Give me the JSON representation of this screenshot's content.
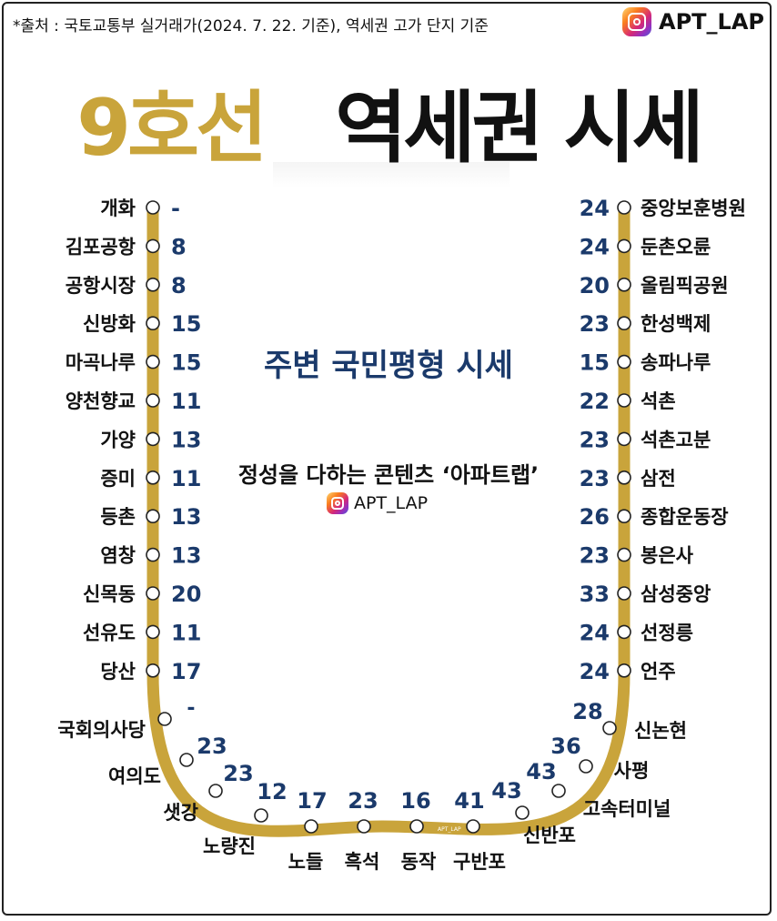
{
  "source_note": "*출처 : 국토교통부 실거래가(2024. 7. 22. 기준), 역세권 고가 단지 기준",
  "brand": "APT_LAP",
  "title_line": {
    "line_no": "9호선",
    "rest": "역세권 시세"
  },
  "center": {
    "title": "주변 국민평형 시세",
    "subtitle": "정성을 다하는 콘텐츠 ‘아파트랩’",
    "brand": "APT_LAP",
    "mini_brand": "APT_LAP"
  },
  "colors": {
    "line": "#c9a43b",
    "value": "#1b3a6b",
    "label": "#111111"
  },
  "stations": [
    {
      "name": "개화",
      "value": "-"
    },
    {
      "name": "김포공항",
      "value": "8"
    },
    {
      "name": "공항시장",
      "value": "8"
    },
    {
      "name": "신방화",
      "value": "15"
    },
    {
      "name": "마곡나루",
      "value": "15"
    },
    {
      "name": "양천향교",
      "value": "11"
    },
    {
      "name": "가양",
      "value": "13"
    },
    {
      "name": "증미",
      "value": "11"
    },
    {
      "name": "등촌",
      "value": "13"
    },
    {
      "name": "염창",
      "value": "13"
    },
    {
      "name": "신목동",
      "value": "20"
    },
    {
      "name": "선유도",
      "value": "11"
    },
    {
      "name": "당산",
      "value": "17"
    },
    {
      "name": "국회의사당",
      "value": "-"
    },
    {
      "name": "여의도",
      "value": "23"
    },
    {
      "name": "샛강",
      "value": "23"
    },
    {
      "name": "노량진",
      "value": "12"
    },
    {
      "name": "노들",
      "value": "17"
    },
    {
      "name": "흑석",
      "value": "23"
    },
    {
      "name": "동작",
      "value": "16"
    },
    {
      "name": "구반포",
      "value": "41"
    },
    {
      "name": "신반포",
      "value": "43"
    },
    {
      "name": "고속터미널",
      "value": "43"
    },
    {
      "name": "사평",
      "value": "36"
    },
    {
      "name": "신논현",
      "value": "28"
    },
    {
      "name": "언주",
      "value": "24"
    },
    {
      "name": "선정릉",
      "value": "24"
    },
    {
      "name": "삼성중앙",
      "value": "33"
    },
    {
      "name": "봉은사",
      "value": "23"
    },
    {
      "name": "종합운동장",
      "value": "26"
    },
    {
      "name": "삼전",
      "value": "23"
    },
    {
      "name": "석촌고분",
      "value": "23"
    },
    {
      "name": "석촌",
      "value": "22"
    },
    {
      "name": "송파나루",
      "value": "15"
    },
    {
      "name": "한성백제",
      "value": "23"
    },
    {
      "name": "올림픽공원",
      "value": "20"
    },
    {
      "name": "둔촌오륜",
      "value": "24"
    },
    {
      "name": "중앙보훈병원",
      "value": "24"
    }
  ]
}
